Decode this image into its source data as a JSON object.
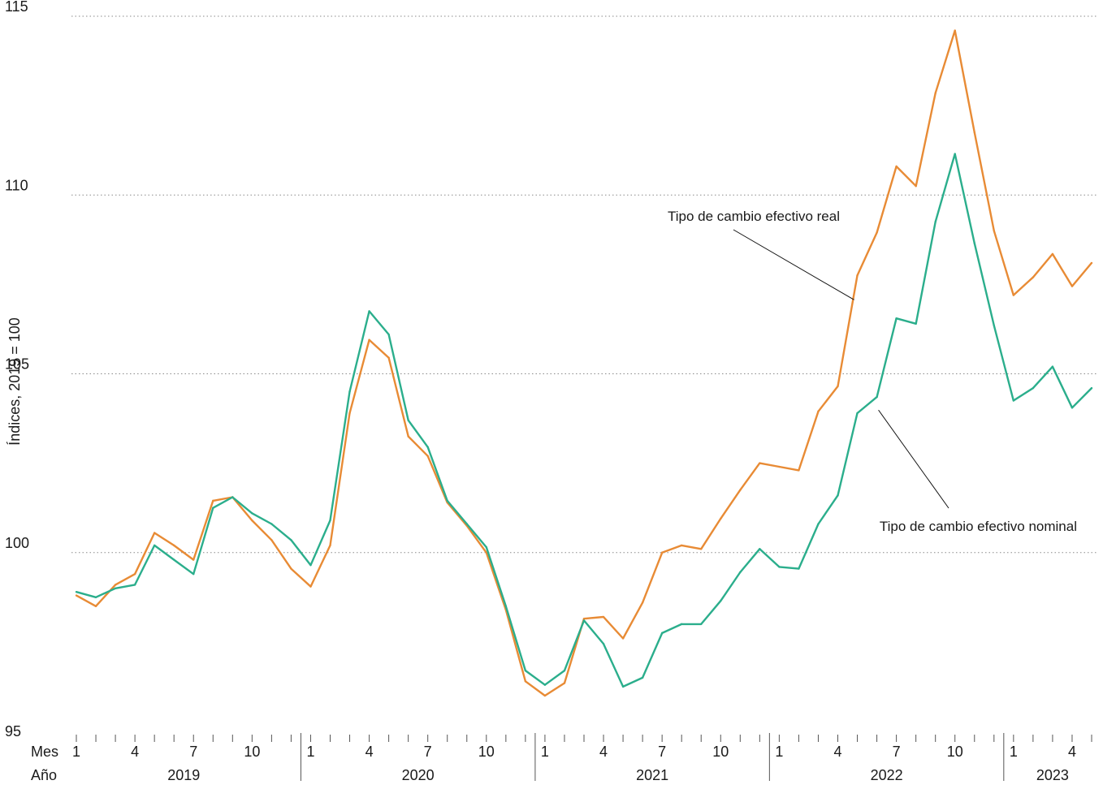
{
  "chart_data": {
    "type": "line",
    "ylabel": "Índices, 2019 = 100",
    "ylim": [
      95,
      115
    ],
    "yticks": [
      95,
      100,
      105,
      110,
      115
    ],
    "grid": "horizontal dotted",
    "x_axis": {
      "row_labels": [
        "Mes",
        "Año"
      ],
      "month_ticks": [
        "1",
        "4",
        "7",
        "10"
      ],
      "years": [
        "2019",
        "2020",
        "2021",
        "2022",
        "2023"
      ],
      "start": "2019-01",
      "end": "2023-05"
    },
    "series": [
      {
        "name": "Tipo de cambio efectivo real",
        "color": "#E88B35",
        "values": [
          98.8,
          98.5,
          99.1,
          99.4,
          100.55,
          100.2,
          99.8,
          101.45,
          101.55,
          100.9,
          100.35,
          99.55,
          99.05,
          100.2,
          103.9,
          105.95,
          105.45,
          103.25,
          102.7,
          101.4,
          100.75,
          100.0,
          98.4,
          96.4,
          96.0,
          96.35,
          98.15,
          98.2,
          97.6,
          98.6,
          100.0,
          100.2,
          100.1,
          100.95,
          101.75,
          102.5,
          102.4,
          102.3,
          103.95,
          104.65,
          107.75,
          108.95,
          110.8,
          110.25,
          112.85,
          114.6,
          111.75,
          109.0,
          107.2,
          107.7,
          108.35,
          107.45,
          108.1
        ]
      },
      {
        "name": "Tipo de cambio efectivo nominal",
        "color": "#2BAE8C",
        "values": [
          98.9,
          98.75,
          99.0,
          99.1,
          100.2,
          99.8,
          99.4,
          101.25,
          101.55,
          101.1,
          100.8,
          100.35,
          99.65,
          100.9,
          104.5,
          106.75,
          106.1,
          103.7,
          102.95,
          101.45,
          100.8,
          100.15,
          98.5,
          96.7,
          96.3,
          96.7,
          98.1,
          97.45,
          96.25,
          96.5,
          97.75,
          98.0,
          98.0,
          98.65,
          99.45,
          100.1,
          99.6,
          99.55,
          100.8,
          101.6,
          103.9,
          104.35,
          106.55,
          106.4,
          109.25,
          111.15,
          108.65,
          106.35,
          104.25,
          104.6,
          105.2,
          104.05,
          104.6
        ]
      }
    ],
    "annotations": [
      {
        "text": "Tipo de cambio efectivo real",
        "series": 0
      },
      {
        "text": "Tipo de cambio efectivo nominal",
        "series": 1
      }
    ]
  }
}
